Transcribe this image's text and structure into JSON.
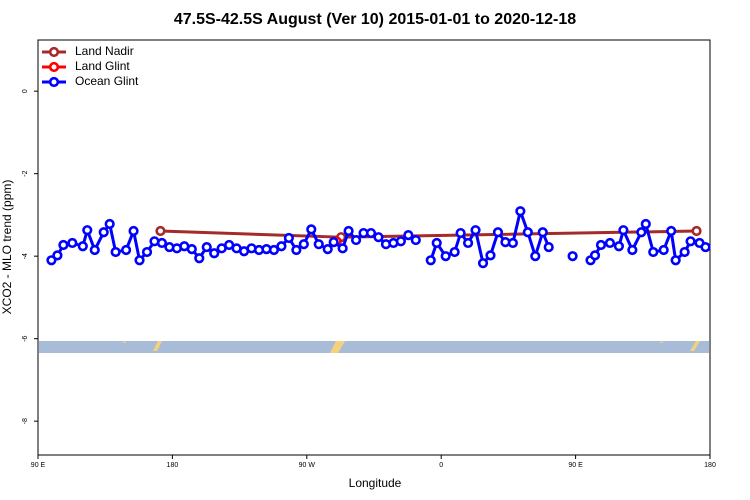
{
  "chart_data": {
    "type": "line",
    "title": "47.5S-42.5S August (Ver 10)   2015-01-01 to 2020-12-18",
    "xlabel": "Longitude",
    "ylabel": "XCO2 - MLO trend (ppm)",
    "xlim": [
      90,
      540
    ],
    "ylim": [
      -8.82,
      1.24
    ],
    "xticks": [
      {
        "value": 90,
        "label": "90 E"
      },
      180,
      {
        "value": 270,
        "label": "90 W"
      },
      {
        "value": 360,
        "label": "0"
      },
      {
        "value": 450,
        "label": "90 E"
      },
      {
        "value": 540,
        "label": "180"
      }
    ],
    "yticks": [
      0,
      -2,
      -4,
      -6,
      -8
    ],
    "legend": "top-left",
    "series": [
      {
        "name": "Land Nadir",
        "color": "#a52a2a",
        "x": [
          172,
          293,
          531
        ],
        "values": [
          -3.39,
          -3.54,
          -3.39
        ]
      },
      {
        "name": "Land Glint",
        "color": "#ff0000",
        "x": [
          290
        ],
        "values": [
          -3.64
        ]
      },
      {
        "name": "Ocean Glint",
        "color": "#0000ff",
        "x": [
          99,
          103,
          107,
          113,
          120,
          123,
          128,
          134,
          138,
          142,
          149,
          154,
          158,
          163,
          168,
          173,
          178,
          183,
          188,
          193,
          198,
          203,
          208,
          213,
          218,
          223,
          228,
          233,
          238,
          243,
          248,
          253,
          258,
          263,
          268,
          273,
          278,
          284,
          288,
          294,
          298,
          303,
          308,
          313,
          318,
          323,
          328,
          333,
          338,
          343,
          348,
          353,
          357,
          363,
          369,
          373,
          378,
          383,
          388,
          393,
          398,
          403,
          408,
          413,
          418,
          423,
          428,
          432,
          438,
          448,
          455,
          460,
          463,
          467,
          473,
          479,
          482,
          488,
          494,
          497,
          502,
          509,
          514,
          517,
          523,
          527,
          533,
          537
        ],
        "values": [
          -4.1,
          -3.98,
          -3.73,
          -3.68,
          -3.76,
          -3.37,
          -3.85,
          -3.42,
          -3.22,
          -3.9,
          -3.85,
          -3.39,
          -4.1,
          -3.9,
          -3.64,
          -3.68,
          -3.78,
          -3.81,
          -3.76,
          -3.83,
          -4.05,
          -3.78,
          -3.93,
          -3.81,
          -3.73,
          -3.81,
          -3.88,
          -3.81,
          -3.85,
          -3.83,
          -3.85,
          -3.76,
          -3.56,
          -3.85,
          -3.71,
          -3.35,
          -3.71,
          -3.83,
          -3.66,
          -3.81,
          -3.39,
          -3.61,
          -3.44,
          -3.44,
          -3.54,
          -3.71,
          -3.68,
          -3.64,
          -3.49,
          -3.61,
          null,
          -4.1,
          -3.68,
          -4.0,
          -3.9,
          -3.44,
          -3.68,
          -3.37,
          -4.17,
          -3.98,
          -3.42,
          -3.66,
          -3.68,
          -2.91,
          -3.42,
          -4.0,
          -3.42,
          -3.78,
          null,
          -4.0,
          null,
          -4.1,
          -3.98,
          -3.73,
          -3.68,
          -3.76,
          -3.37,
          -3.85,
          -3.42,
          -3.22,
          -3.9,
          -3.85,
          -3.39,
          -4.1,
          -3.9,
          -3.64,
          -3.68,
          -3.78
        ]
      }
    ]
  }
}
